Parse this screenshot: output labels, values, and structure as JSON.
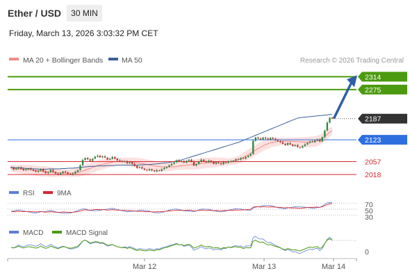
{
  "header": {
    "title": "Ether / USD",
    "interval": "30 MIN",
    "datetime": "Friday, March 13, 2026 3:03:32 PM CET"
  },
  "legend": {
    "ma20_label": "MA 20 + Bollinger Bands",
    "ma50_label": "MA 50",
    "ma20_color": "#f28b82",
    "ma50_color": "#3a5f99",
    "research": "Research © 2026 Trading Central"
  },
  "chart_data": [
    {
      "type": "candlestick",
      "title": "Ether / USD",
      "interval": "30 MIN",
      "x_ticks": [
        "Mar 12",
        "Mar 13",
        "Mar 14"
      ],
      "ylim": [
        1995,
        2340
      ],
      "price_levels": [
        {
          "value": 2314,
          "label": "2314",
          "kind": "target",
          "color": "#4c9a0f"
        },
        {
          "value": 2275,
          "label": "2275",
          "kind": "target",
          "color": "#4c9a0f"
        },
        {
          "value": 2187,
          "label": "2187",
          "kind": "last",
          "color": "#333333"
        },
        {
          "value": 2123,
          "label": "2123",
          "kind": "pivot",
          "color": "#2e6fe0"
        },
        {
          "value": 2057,
          "label": "2057",
          "kind": "support",
          "color": "#d9262f"
        },
        {
          "value": 2018,
          "label": "2018",
          "kind": "support",
          "color": "#d9262f"
        }
      ],
      "close": [
        2038,
        2033,
        2036,
        2040,
        2035,
        2031,
        2034,
        2036,
        2033,
        2030,
        2026,
        2029,
        2035,
        2027,
        2022,
        2025,
        2032,
        2026,
        2021,
        2018,
        2022,
        2027,
        2024,
        2020,
        2018,
        2021,
        2026,
        2031,
        2046,
        2062,
        2068,
        2064,
        2059,
        2066,
        2072,
        2075,
        2070,
        2073,
        2069,
        2063,
        2066,
        2071,
        2066,
        2061,
        2059,
        2056,
        2058,
        2052,
        2055,
        2050,
        2044,
        2038,
        2040,
        2036,
        2032,
        2030,
        2034,
        2030,
        2027,
        2031,
        2029,
        2034,
        2038,
        2041,
        2046,
        2050,
        2055,
        2061,
        2057,
        2059,
        2054,
        2059,
        2063,
        2057,
        2045,
        2050,
        2056,
        2063,
        2058,
        2055,
        2060,
        2056,
        2050,
        2054,
        2052,
        2049,
        2055,
        2053,
        2058,
        2056,
        2060,
        2064,
        2063,
        2068,
        2066,
        2071,
        2075,
        2080,
        2120,
        2130,
        2127,
        2124,
        2130,
        2127,
        2124,
        2129,
        2126,
        2122,
        2119,
        2116,
        2111,
        2107,
        2113,
        2109,
        2104,
        2107,
        2101,
        2099,
        2104,
        2109,
        2114,
        2118,
        2116,
        2121,
        2124,
        2118,
        2131,
        2151,
        2175,
        2190,
        2187
      ],
      "ma20": [
        2038,
        2036,
        2035,
        2034,
        2034,
        2033,
        2032,
        2031,
        2030,
        2029,
        2028,
        2027,
        2027,
        2026,
        2025,
        2024,
        2024,
        2023,
        2023,
        2022,
        2022,
        2023,
        2024,
        2025,
        2027,
        2030,
        2033,
        2036,
        2040,
        2043,
        2046,
        2048,
        2050,
        2052,
        2054,
        2056,
        2057,
        2058,
        2058,
        2058,
        2057,
        2056,
        2055,
        2054,
        2052,
        2051,
        2049,
        2047,
        2046,
        2044,
        2043,
        2042,
        2041,
        2041,
        2041,
        2041,
        2042,
        2043,
        2044,
        2045,
        2046,
        2047,
        2048,
        2049,
        2050,
        2051,
        2052,
        2053,
        2054,
        2054,
        2055,
        2055,
        2056,
        2056,
        2056,
        2057,
        2058,
        2060,
        2063,
        2067,
        2072,
        2077,
        2082,
        2088,
        2093,
        2098,
        2103,
        2108,
        2111,
        2114,
        2116,
        2117,
        2118,
        2119,
        2119,
        2119,
        2118,
        2118,
        2117,
        2117,
        2116,
        2116,
        2116,
        2117,
        2118,
        2120,
        2124,
        2130,
        2137,
        2145,
        2150
      ],
      "ma50": [
        2040,
        2039,
        2038,
        2038,
        2037,
        2036,
        2036,
        2035,
        2035,
        2034,
        2034,
        2034,
        2035,
        2035,
        2035,
        2035,
        2036,
        2036,
        2037,
        2037,
        2038,
        2039,
        2040,
        2041,
        2042,
        2043,
        2043,
        2044,
        2044,
        2044,
        2045,
        2045,
        2045,
        2046,
        2046,
        2046,
        2046,
        2046,
        2046,
        2046,
        2047,
        2047,
        2048,
        2048,
        2049,
        2050,
        2051,
        2052,
        2053,
        2054,
        2056,
        2058,
        2060,
        2062,
        2065,
        2068,
        2071,
        2074,
        2077,
        2080,
        2083,
        2086,
        2089,
        2092,
        2095,
        2098,
        2101,
        2104,
        2107,
        2110,
        2113,
        2116,
        2120,
        2124,
        2128,
        2132,
        2136,
        2140,
        2144,
        2148,
        2152,
        2156,
        2160,
        2164,
        2168,
        2172,
        2176,
        2180,
        2184,
        2188,
        2190,
        2191,
        2192,
        2193,
        2194,
        2195,
        2196,
        2197,
        2198,
        2199,
        2200
      ],
      "rsi_levels": [
        70,
        50,
        30
      ],
      "macd_levels": [
        0
      ]
    }
  ],
  "rsi": {
    "label": "RSI",
    "ma_label": "9MA",
    "color": "#5b7fd6",
    "ma_color": "#d9262f",
    "levels": [
      "70",
      "50",
      "30"
    ]
  },
  "macd": {
    "label": "MACD",
    "signal_label": "MACD Signal",
    "color": "#5b7fd6",
    "signal_color": "#4c9a0f",
    "zero": "0"
  },
  "colors": {
    "up": "#2e8b3e",
    "down": "#c0392b",
    "target": "#4c9a0f",
    "pivot": "#2e6fe0",
    "support": "#d9262f",
    "last": "#333333",
    "arrow": "#2e5ea8",
    "band": "#fbd7d7"
  }
}
